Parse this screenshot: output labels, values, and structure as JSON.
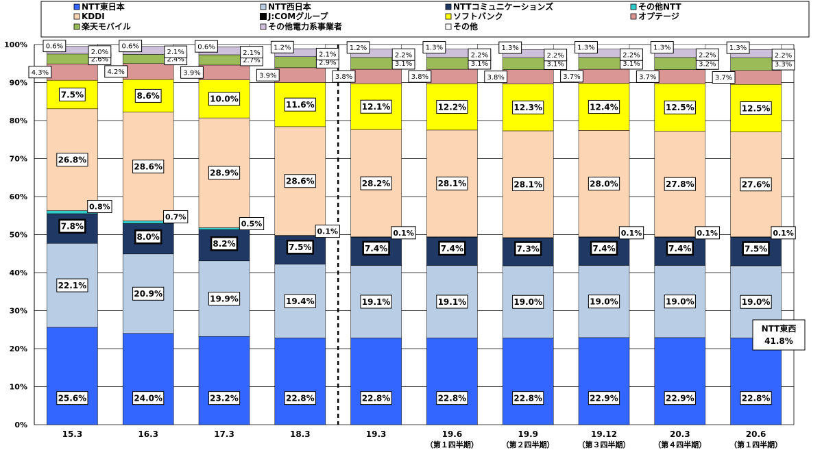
{
  "chart_data": {
    "type": "bar",
    "stacked": true,
    "categories": [
      "15.3",
      "16.3",
      "17.3",
      "18.3",
      "19.3",
      "19.6",
      "19.9",
      "19.12",
      "20.3",
      "20.6"
    ],
    "category_sublabels": [
      "",
      "",
      "",
      "",
      "",
      "（第１四半期）",
      "（第２四半期）",
      "（第３四半期）",
      "（第４四半期）",
      "（第１四半期）"
    ],
    "ylim": [
      0,
      100
    ],
    "yticks": [
      "0%",
      "10%",
      "20%",
      "30%",
      "40%",
      "50%",
      "60%",
      "70%",
      "80%",
      "90%",
      "100%"
    ],
    "divider_after_index": 3,
    "series": [
      {
        "name": "NTT東日本",
        "color": "#3366ff",
        "values": [
          25.6,
          24.0,
          23.2,
          22.8,
          22.8,
          22.8,
          22.8,
          22.9,
          22.9,
          22.8
        ],
        "labels": [
          "25.6%",
          "24.0%",
          "23.2%",
          "22.8%",
          "22.8%",
          "22.8%",
          "22.8%",
          "22.9%",
          "22.9%",
          "22.8%"
        ]
      },
      {
        "name": "NTT西日本",
        "color": "#b9cde5",
        "values": [
          22.1,
          20.9,
          19.9,
          19.4,
          19.1,
          19.1,
          19.0,
          19.0,
          19.0,
          19.0
        ],
        "labels": [
          "22.1%",
          "20.9%",
          "19.9%",
          "19.4%",
          "19.1%",
          "19.1%",
          "19.0%",
          "19.0%",
          "19.0%",
          "19.0%"
        ]
      },
      {
        "name": "NTTコミュニケーションズ",
        "color": "#1f3864",
        "values": [
          7.8,
          8.0,
          8.2,
          7.5,
          7.4,
          7.4,
          7.3,
          7.4,
          7.4,
          7.5
        ],
        "labels": [
          "7.8%",
          "8.0%",
          "8.2%",
          "7.5%",
          "7.4%",
          "7.4%",
          "7.3%",
          "7.4%",
          "7.4%",
          "7.5%"
        ]
      },
      {
        "name": "その他NTT",
        "color": "#33cccc",
        "values": [
          0.8,
          0.7,
          0.5,
          0.1,
          0.1,
          0.1,
          0.1,
          0.1,
          0.1,
          0.1
        ],
        "labels": [
          "0.8%",
          "0.7%",
          "0.5%",
          "0.1%",
          "0.1%",
          "",
          "",
          "0.1%",
          "0.1%",
          "0.1%"
        ]
      },
      {
        "name": "KDDI",
        "color": "#fcd5b4",
        "values": [
          26.8,
          28.6,
          28.9,
          28.6,
          28.2,
          28.1,
          28.1,
          28.0,
          27.8,
          27.6
        ],
        "labels": [
          "26.8%",
          "28.6%",
          "28.9%",
          "28.6%",
          "28.2%",
          "28.1%",
          "28.1%",
          "28.0%",
          "27.8%",
          "27.6%"
        ]
      },
      {
        "name": "J:COMグループ",
        "color": "#000000",
        "values": [
          0,
          0,
          0,
          0,
          0,
          0,
          0,
          0,
          0,
          0
        ],
        "labels": [
          "",
          "",
          "",
          "",
          "",
          "",
          "",
          "",
          "",
          ""
        ]
      },
      {
        "name": "ソフトバンク",
        "color": "#ffff00",
        "values": [
          7.5,
          8.6,
          10.0,
          11.6,
          12.1,
          12.2,
          12.3,
          12.4,
          12.5,
          12.5
        ],
        "labels": [
          "7.5%",
          "8.6%",
          "10.0%",
          "11.6%",
          "12.1%",
          "12.2%",
          "12.3%",
          "12.4%",
          "12.5%",
          "12.5%"
        ]
      },
      {
        "name": "オプテージ",
        "color": "#da9694",
        "values": [
          4.3,
          4.2,
          3.9,
          3.9,
          3.8,
          3.8,
          3.8,
          3.7,
          3.7,
          3.7
        ],
        "labels": [
          "4.3%",
          "4.2%",
          "3.9%",
          "3.9%",
          "3.8%",
          "3.8%",
          "3.8%",
          "3.7%",
          "3.7%",
          "3.7%"
        ]
      },
      {
        "name": "楽天モバイル",
        "color": "#9bbb59",
        "values": [
          2.6,
          2.4,
          2.7,
          2.9,
          3.1,
          3.1,
          3.1,
          3.1,
          3.2,
          3.3
        ],
        "labels": [
          "2.6%",
          "2.4%",
          "2.7%",
          "2.9%",
          "3.1%",
          "3.1%",
          "3.1%",
          "3.1%",
          "3.2%",
          "3.3%"
        ]
      },
      {
        "name": "その他電力系事業者",
        "color": "#ccc0da",
        "values": [
          2.0,
          2.1,
          2.1,
          2.1,
          2.2,
          2.2,
          2.2,
          2.2,
          2.2,
          2.2
        ],
        "labels": [
          "2.0%",
          "2.1%",
          "2.1%",
          "2.1%",
          "2.2%",
          "2.2%",
          "2.2%",
          "2.2%",
          "2.2%",
          "2.2%"
        ]
      },
      {
        "name": "その他",
        "color": "#ffffff",
        "values": [
          0.6,
          0.6,
          0.6,
          1.2,
          1.2,
          1.3,
          1.3,
          1.3,
          1.3,
          1.3
        ],
        "labels": [
          "0.6%",
          "0.6%",
          "0.6%",
          "1.2%",
          "1.2%",
          "1.3%",
          "1.3%",
          "1.3%",
          "1.3%",
          "1.3%"
        ]
      }
    ],
    "legend_order": [
      0,
      1,
      2,
      3,
      4,
      5,
      6,
      7,
      8,
      9,
      10
    ],
    "legend_placement": "top",
    "callout": {
      "line1": "NTT東西",
      "line2": "41.8%"
    }
  }
}
